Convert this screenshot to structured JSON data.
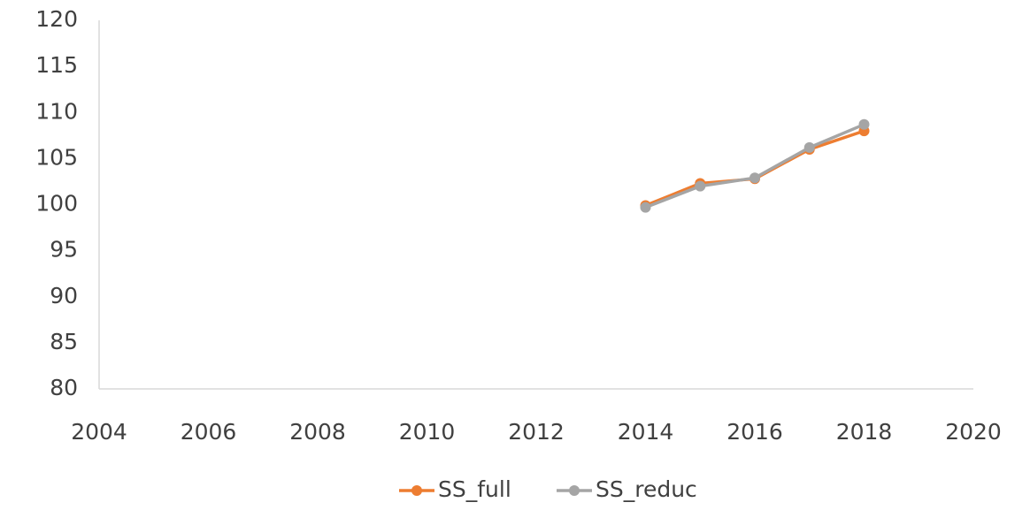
{
  "chart_data": {
    "type": "line",
    "series": [
      {
        "name": "SS_full",
        "color": "#ed7d31",
        "x": [
          2014,
          2015,
          2016,
          2017,
          2018
        ],
        "values": [
          99.9,
          102.3,
          102.8,
          106.0,
          108.0
        ]
      },
      {
        "name": "SS_reduc",
        "color": "#a5a5a5",
        "x": [
          2014,
          2015,
          2016,
          2017,
          2018
        ],
        "values": [
          99.7,
          102.0,
          102.9,
          106.2,
          108.7
        ]
      }
    ],
    "xlim": [
      2004,
      2020
    ],
    "xticks": [
      2004,
      2006,
      2008,
      2010,
      2012,
      2014,
      2016,
      2018,
      2020
    ],
    "ylim": [
      80,
      120
    ],
    "yticks": [
      80,
      85,
      90,
      95,
      100,
      105,
      110,
      115,
      120
    ],
    "grid": false,
    "legend": "bottom"
  }
}
